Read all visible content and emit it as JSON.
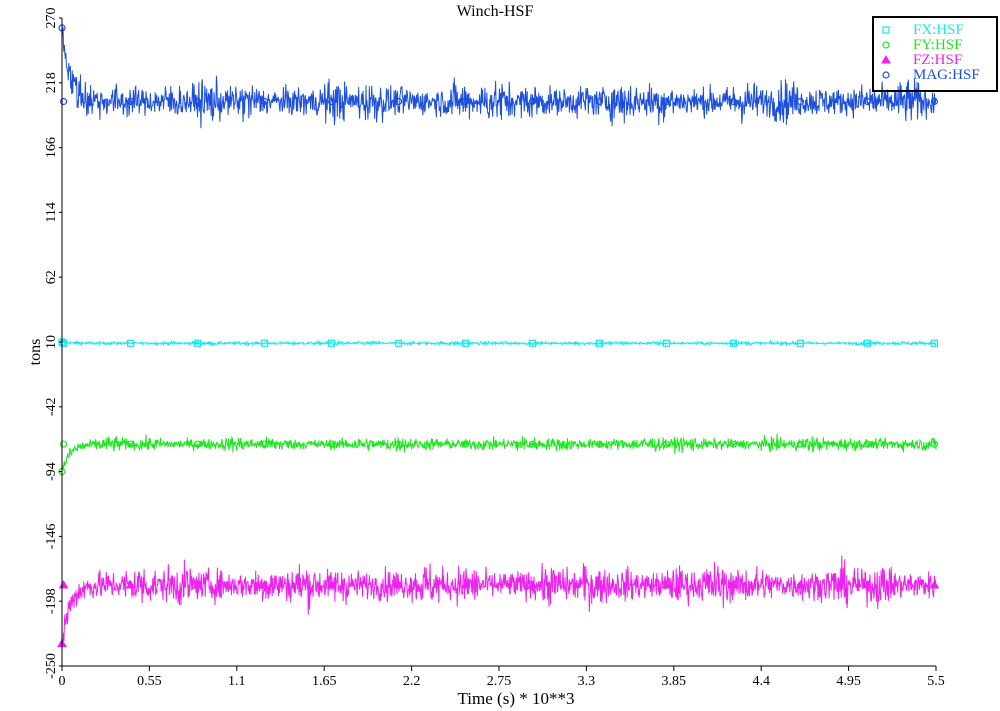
{
  "chart_data": {
    "type": "line",
    "title": "Winch-HSF",
    "xlabel": "Time (s) * 10**3",
    "ylabel": "tons",
    "xlim": [
      0,
      5.5
    ],
    "ylim": [
      -250,
      270
    ],
    "xticks": [
      "0",
      "0.55",
      "1.1",
      "1.65",
      "2.2",
      "2.75",
      "3.3",
      "3.85",
      "4.4",
      "4.95",
      "5.5"
    ],
    "yticks": [
      "-250",
      "-198",
      "-146",
      "-94",
      "-42",
      "10",
      "62",
      "114",
      "166",
      "218",
      "270"
    ],
    "grid": false,
    "legend_position": "top-right",
    "series": [
      {
        "name": "FX:HSF",
        "color": "#19e6ec",
        "marker": "square",
        "start": 10,
        "mean": 9,
        "amplitude": 2
      },
      {
        "name": "FY:HSF",
        "color": "#1ee61e",
        "marker": "circle",
        "start": -94,
        "mean": -72,
        "amplitude": 8
      },
      {
        "name": "FZ:HSF",
        "color": "#ee22ee",
        "marker": "triangle",
        "start": -232,
        "mean": -185,
        "amplitude": 22
      },
      {
        "name": "MAG:HSF",
        "color": "#1c4fdc",
        "marker": "circle",
        "start": 262,
        "mean": 203,
        "amplitude": 22
      }
    ]
  }
}
